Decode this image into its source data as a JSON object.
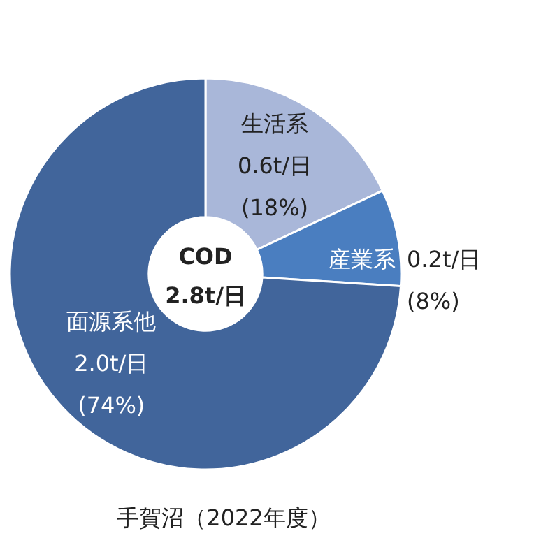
{
  "chart_data": {
    "type": "donut",
    "title": "手賀沼（2022年度）",
    "categories": [
      "生活系",
      "産業系",
      "面源系他"
    ],
    "values": [
      18,
      8,
      74
    ],
    "colors": [
      "#a9b7d9",
      "#4a7ec0",
      "#41659b"
    ],
    "value_labels": [
      "0.6t/日\n(18%)",
      "0.2t/日\n(8%)",
      "2.0t/日\n(74%)"
    ],
    "annotations": [
      "COD\n2.8t/日"
    ]
  }
}
